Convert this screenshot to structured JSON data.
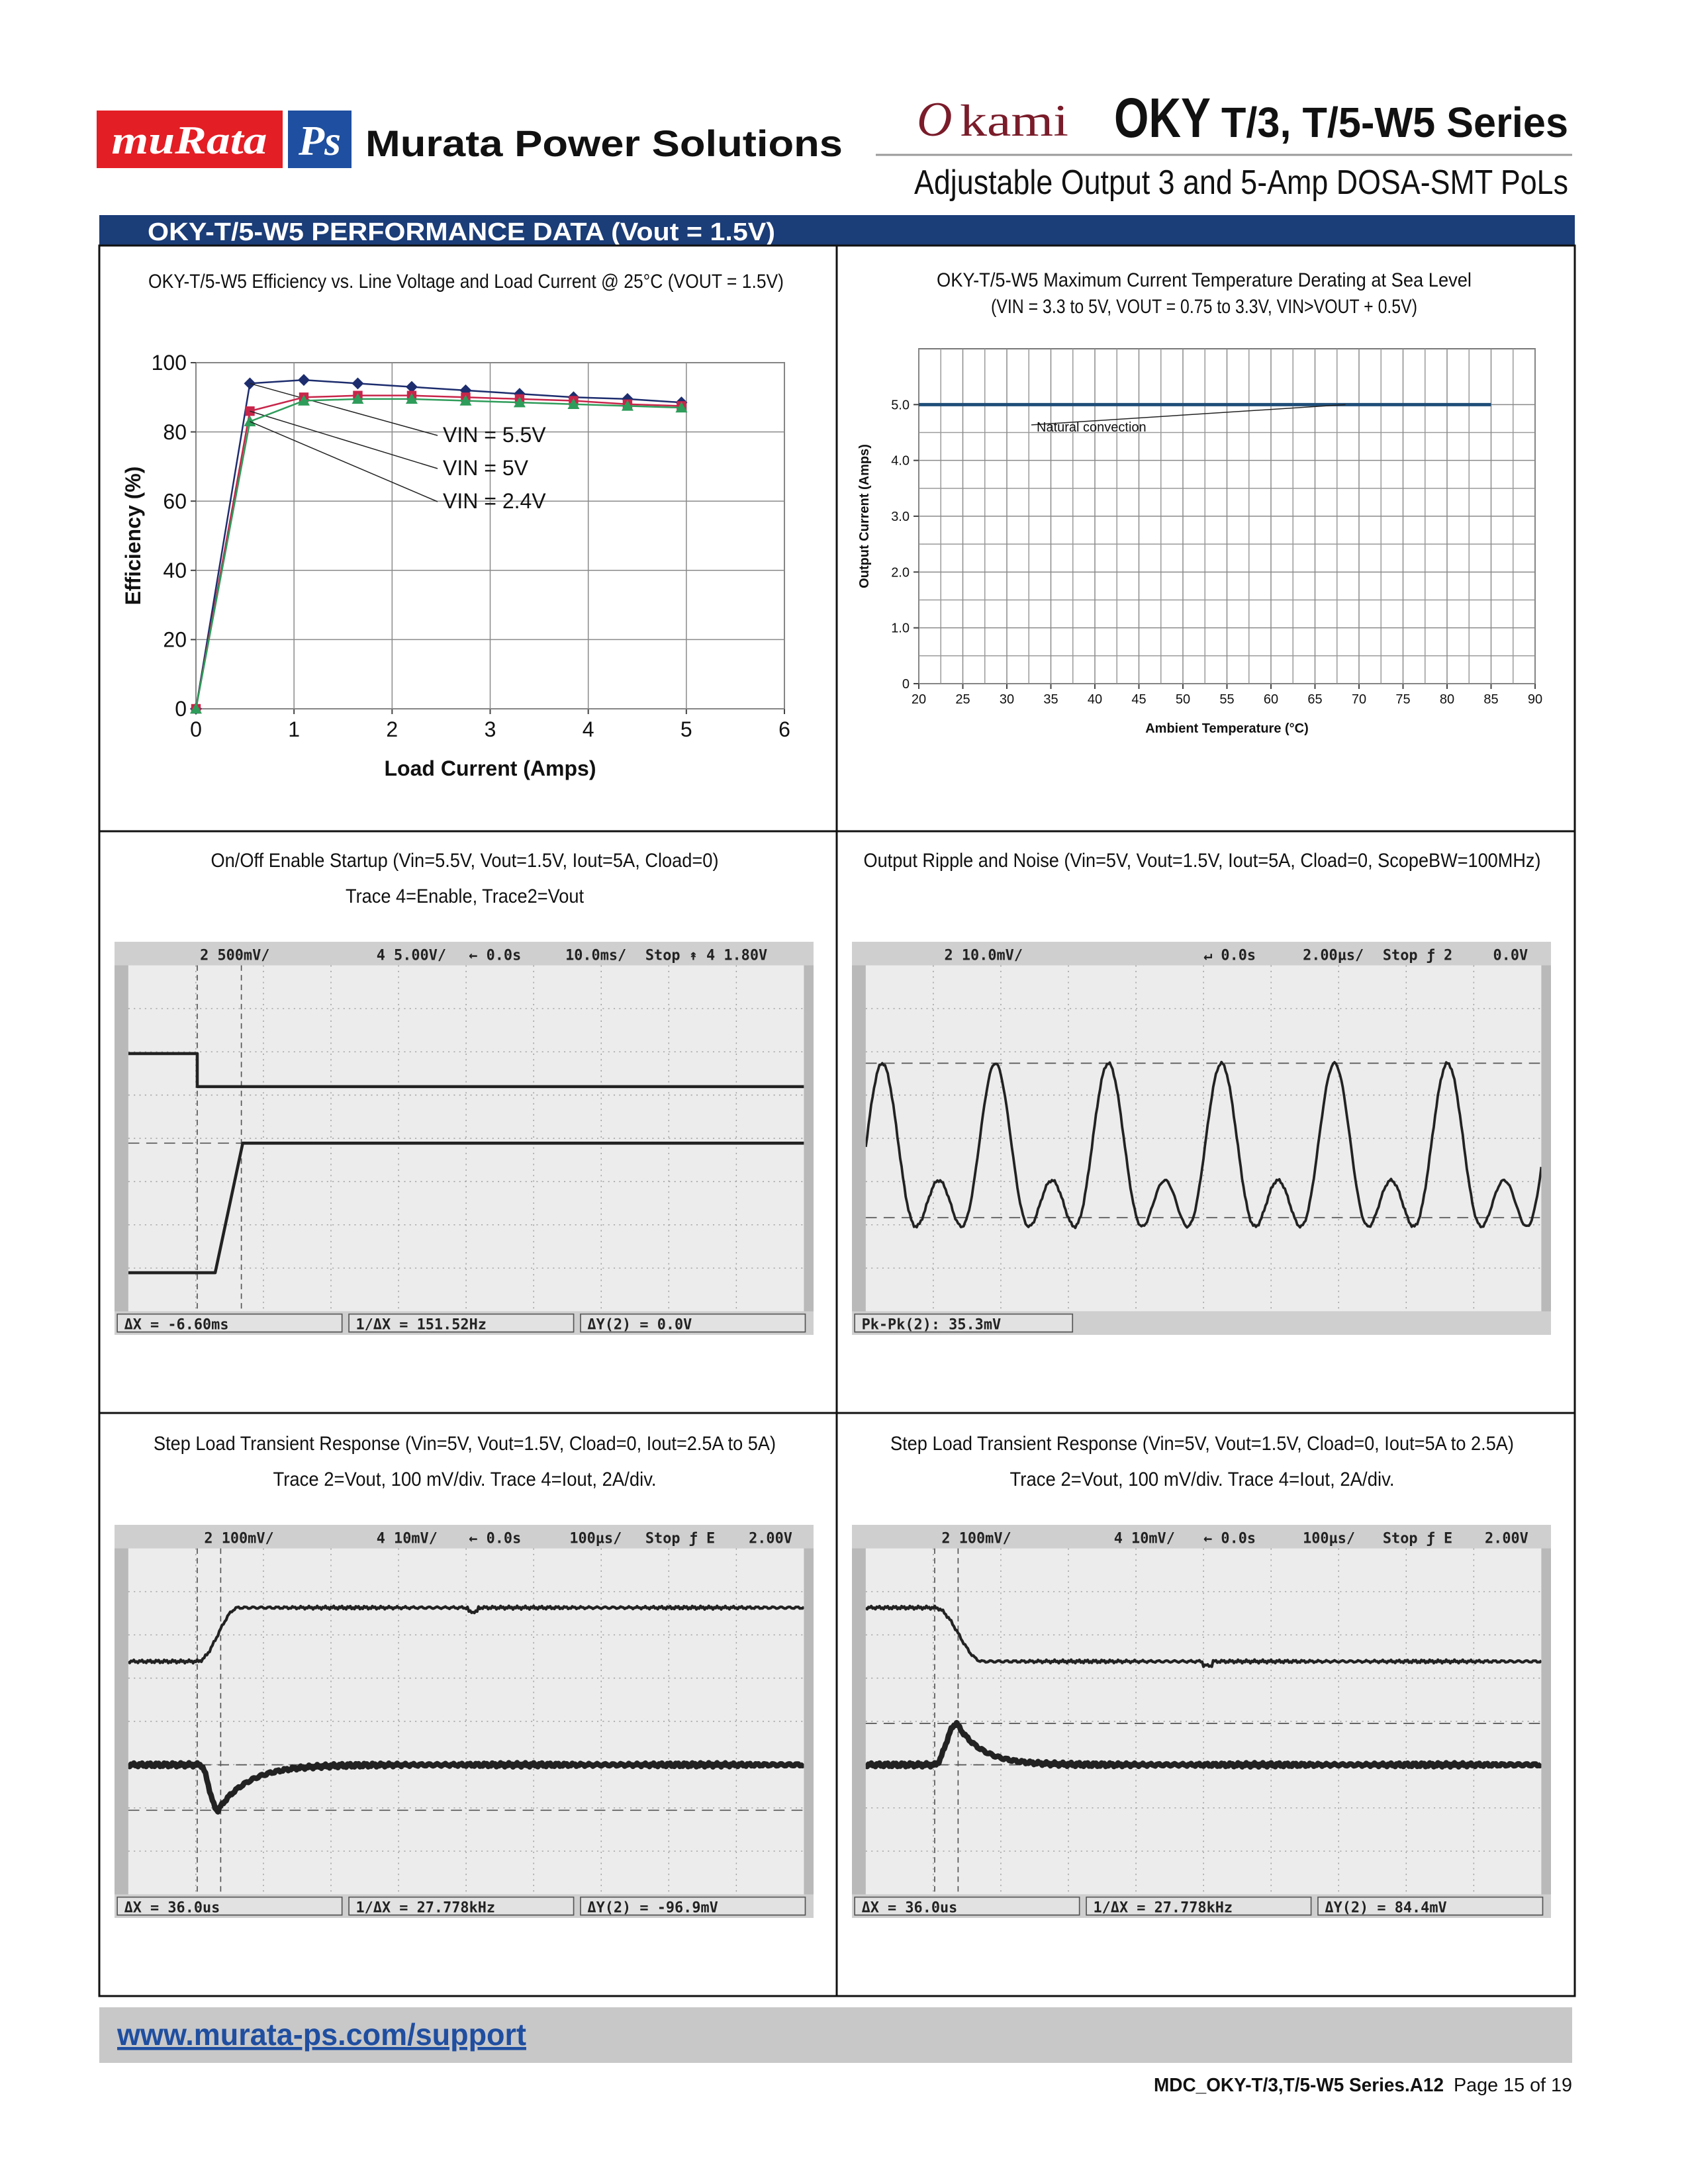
{
  "header": {
    "brand": "muRata",
    "brand_mark": "Ps",
    "company": "Murata Power Solutions",
    "logo_initial": "O",
    "logo_rest": "kami",
    "series_prefix": "OKY",
    "series": "T/3, T/5-W5 Series",
    "subtitle": "Adjustable Output 3 and 5-Amp DOSA-SMT PoLs"
  },
  "section_title": "OKY-T/5-W5 PERFORMANCE DATA (Vout = 1.5V)",
  "chart_data": [
    {
      "type": "line",
      "title": "OKY-T/5-W5 Efficiency vs. Line Voltage and Load Current @ 25°C (VOUT = 1.5V)",
      "x_label": "Load Current (Amps)",
      "y_label": "Efficiency (%)",
      "x": [
        0,
        0.55,
        1.1,
        1.65,
        2.2,
        2.75,
        3.3,
        3.85,
        4.4,
        4.95
      ],
      "series": [
        {
          "name": "VIN = 5.5V",
          "color": "#1d2d6e",
          "marker": "diamond",
          "values": [
            0,
            94,
            95,
            94,
            93,
            92,
            91,
            90,
            89.5,
            88.5
          ]
        },
        {
          "name": "VIN = 5V",
          "color": "#c8254a",
          "marker": "square",
          "values": [
            0,
            86,
            90,
            90.5,
            90.5,
            90,
            89.5,
            89,
            88,
            87.5
          ]
        },
        {
          "name": "VIN = 2.4V",
          "color": "#2e9c5a",
          "marker": "triangle",
          "values": [
            0,
            83,
            89,
            89.5,
            89.5,
            89,
            88.5,
            88,
            87.5,
            87
          ]
        }
      ],
      "xlim": [
        0,
        6
      ],
      "xticks": [
        0,
        1,
        2,
        3,
        4,
        5,
        6
      ],
      "ylim": [
        0,
        100
      ],
      "yticks": [
        0,
        20,
        40,
        60,
        80,
        100
      ],
      "grid": true
    },
    {
      "type": "line",
      "title": "OKY-T/5-W5 Maximum Current Temperature Derating at Sea Level",
      "subtitle": "(VIN = 3.3 to 5V, VOUT = 0.75 to 3.3V, VIN>VOUT + 0.5V)",
      "x_label": "Ambient Temperature (°C)",
      "y_label": "Output Current (Amps)",
      "x": [
        20,
        85
      ],
      "series": [
        {
          "name": "Natural convection",
          "color": "#1f4e79",
          "values": [
            5,
            5
          ]
        }
      ],
      "xlim": [
        20,
        90
      ],
      "xticks": [
        20,
        25,
        30,
        35,
        40,
        45,
        50,
        55,
        60,
        65,
        70,
        75,
        80,
        85,
        90
      ],
      "ylim": [
        0,
        6
      ],
      "yticks": [
        0,
        {
          "value": 1,
          "label": "1.0"
        },
        {
          "value": 2,
          "label": "2.0"
        },
        {
          "value": 3,
          "label": "3.0"
        },
        {
          "value": 4,
          "label": "4.0"
        },
        {
          "value": 5,
          "label": "5.0"
        }
      ],
      "grid": true
    }
  ],
  "scope_panels": [
    {
      "title_lines": [
        "On/Off Enable Startup (Vin=5.5V, Vout=1.5V, Iout=5A, Cload=0)",
        "Trace 4=Enable, Trace2=Vout"
      ],
      "top_bar": [
        "2 500mV/",
        "4 5.00V/",
        "← 0.0s",
        "10.0ms/",
        "Stop ↟ 4 1.80V"
      ],
      "bottom_bar": [
        "ΔX = -6.60ms",
        "1/ΔX = 151.52Hz",
        "ΔY(2) = 0.0V"
      ]
    },
    {
      "title_lines": [
        "Output Ripple and Noise (Vin=5V, Vout=1.5V, Iout=5A, Cload=0, ScopeBW=100MHz)"
      ],
      "top_bar": [
        "2 10.0mV/",
        "↵ 0.0s",
        "2.00µs/",
        "Stop ƒ 2",
        "0.0V"
      ],
      "bottom_bar": [
        "Pk-Pk(2): 35.3mV"
      ]
    },
    {
      "title_lines": [
        "Step Load Transient Response (Vin=5V, Vout=1.5V, Cload=0, Iout=2.5A to 5A)",
        "Trace 2=Vout, 100 mV/div. Trace 4=Iout, 2A/div."
      ],
      "top_bar": [
        "2 100mV/",
        "4 10mV/",
        "← 0.0s",
        "100µs/",
        "Stop ƒ E",
        "2.00V"
      ],
      "bottom_bar": [
        "ΔX = 36.0us",
        "1/ΔX = 27.778kHz",
        "ΔY(2) = -96.9mV"
      ]
    },
    {
      "title_lines": [
        "Step Load Transient Response (Vin=5V, Vout=1.5V, Cload=0, Iout=5A to 2.5A)",
        "Trace 2=Vout, 100 mV/div. Trace 4=Iout, 2A/div."
      ],
      "top_bar": [
        "2 100mV/",
        "4 10mV/",
        "← 0.0s",
        "100µs/",
        "Stop ƒ E",
        "2.00V"
      ],
      "bottom_bar": [
        "ΔX = 36.0us",
        "1/ΔX = 27.778kHz",
        "ΔY(2) = 84.4mV"
      ]
    }
  ],
  "footer": {
    "url": "www.murata-ps.com/support",
    "doc_id": "MDC_OKY-T/3,T/5-W5 Series.A12",
    "page": "Page 15 of 19"
  }
}
